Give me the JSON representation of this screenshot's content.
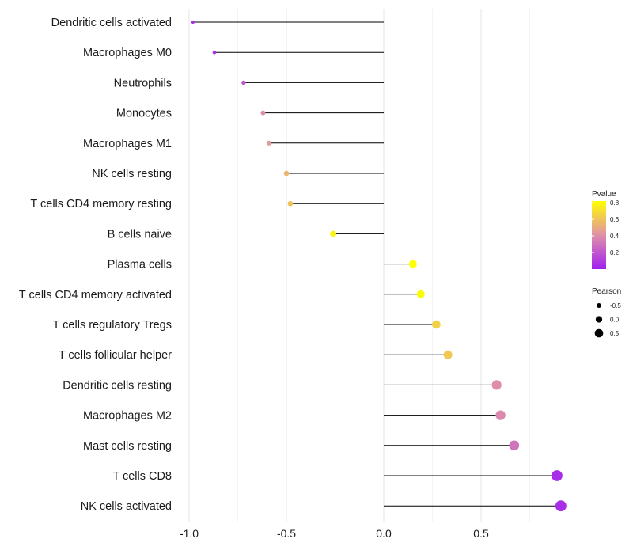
{
  "chart_data": {
    "type": "lollipop",
    "categories": [
      "Dendritic cells activated",
      "Macrophages M0",
      "Neutrophils",
      "Monocytes",
      "Macrophages M1",
      "NK cells resting",
      "T cells CD4 memory resting",
      "B cells naive",
      "Plasma cells",
      "T cells CD4 memory activated",
      "T cells regulatory  Tregs ",
      "T cells follicular helper",
      "Dendritic cells resting",
      "Macrophages M2",
      "Mast cells resting",
      "T cells CD8",
      "NK cells activated"
    ],
    "pearson": [
      -0.98,
      -0.87,
      -0.72,
      -0.62,
      -0.59,
      -0.5,
      -0.48,
      -0.26,
      0.15,
      0.19,
      0.27,
      0.33,
      0.58,
      0.6,
      0.67,
      0.89,
      0.91
    ],
    "pvalue": [
      0.05,
      0.05,
      0.2,
      0.4,
      0.45,
      0.55,
      0.6,
      0.78,
      0.82,
      0.8,
      0.65,
      0.62,
      0.4,
      0.38,
      0.3,
      0.05,
      0.05
    ],
    "x_ticks": [
      "-1.0",
      "-0.5",
      "0.0",
      "0.5"
    ],
    "x_tick_values": [
      -1.0,
      -0.5,
      0.0,
      0.5
    ],
    "xlim": [
      -1.0,
      0.95
    ],
    "xlabel": "",
    "ylabel": "",
    "grid": true,
    "color_scale": {
      "low": "#a020f0",
      "mid": "#e091a8",
      "high": "#ffff00"
    },
    "stem_color": "#000000",
    "legend": {
      "position": "right",
      "color_title": "Pvalue",
      "color_ticks": [
        "0.8",
        "0.6",
        "0.4",
        "0.2"
      ],
      "color_tick_values": [
        0.8,
        0.6,
        0.4,
        0.2
      ],
      "color_range": [
        0.0,
        0.82
      ],
      "size_title": "Pearson",
      "size_ticks": [
        "-0.5",
        "0.0",
        "0.5"
      ],
      "size_tick_values": [
        -0.5,
        0.0,
        0.5
      ]
    }
  }
}
